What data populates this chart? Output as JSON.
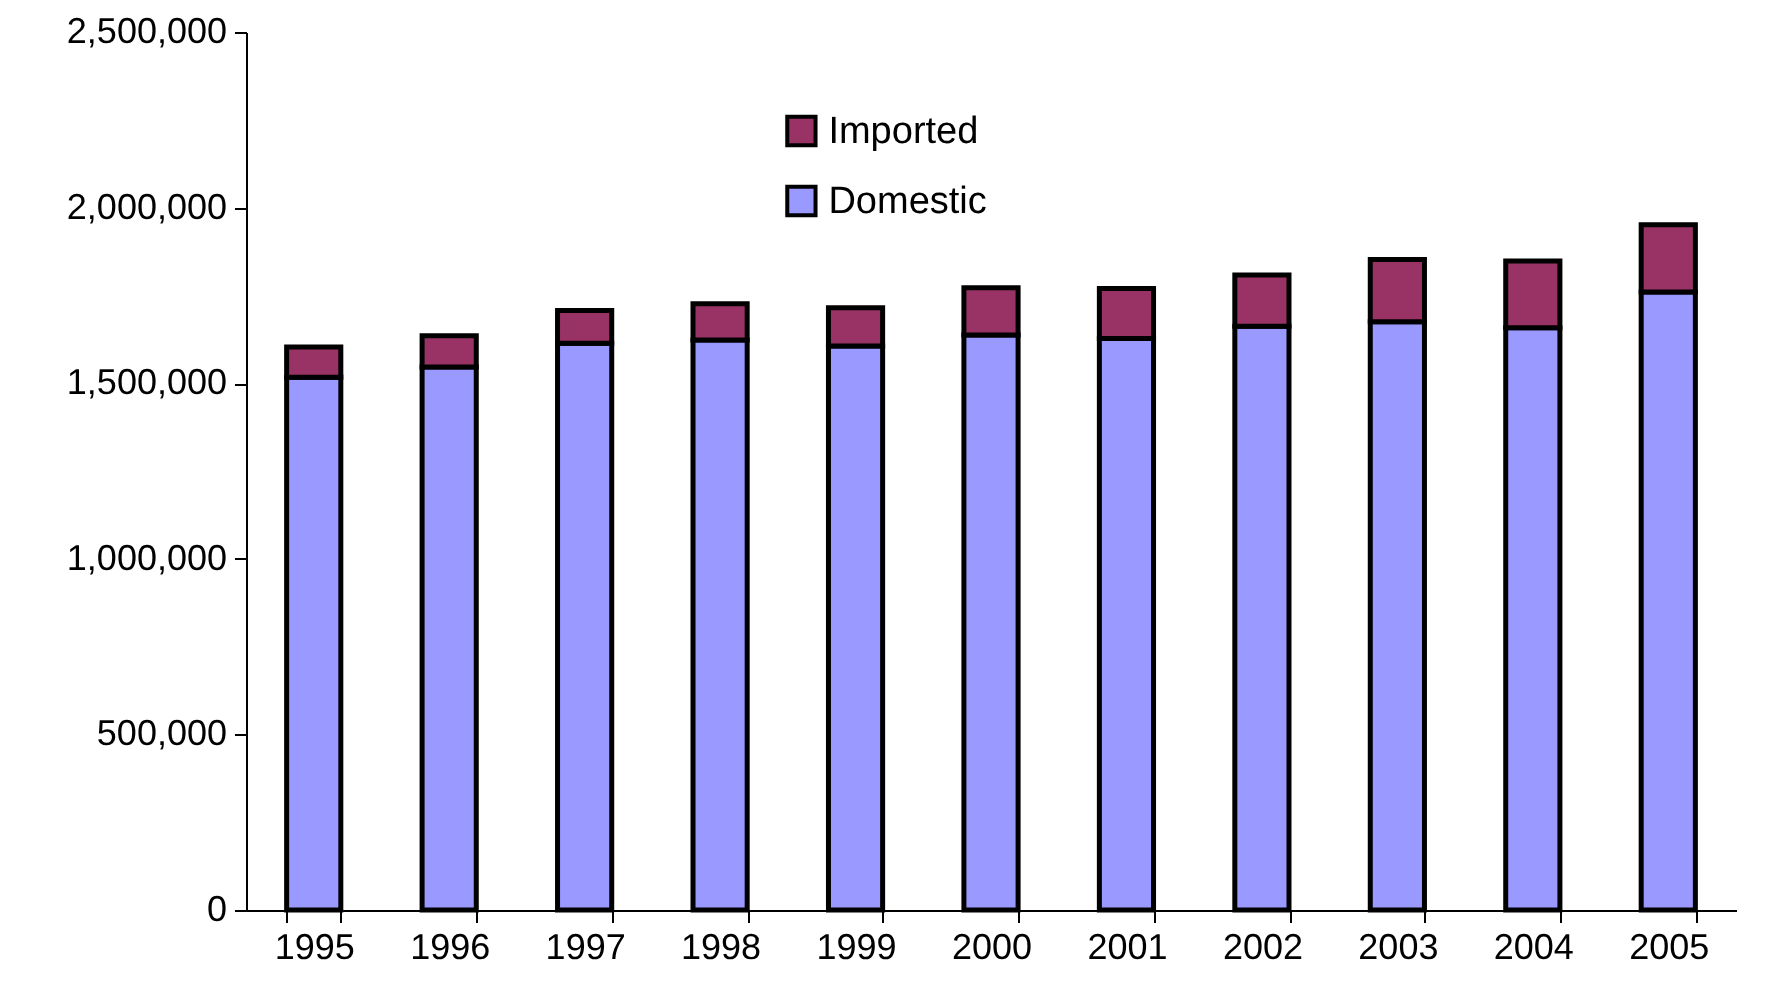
{
  "chart_data": {
    "type": "bar",
    "stacked": true,
    "categories": [
      "1995",
      "1996",
      "1997",
      "1998",
      "1999",
      "2000",
      "2001",
      "2002",
      "2003",
      "2004",
      "2005"
    ],
    "series": [
      {
        "name": "Domestic",
        "color": "#9999ff",
        "values": [
          1517000,
          1546000,
          1614000,
          1623000,
          1606000,
          1637000,
          1627000,
          1662000,
          1675000,
          1658000,
          1760000
        ]
      },
      {
        "name": "Imported",
        "color": "#993366",
        "values": [
          86000,
          89000,
          93000,
          103000,
          109000,
          135000,
          143000,
          146000,
          177000,
          190000,
          191000
        ]
      }
    ],
    "ylim": [
      0,
      2500000
    ],
    "yticks": [
      {
        "value": 0,
        "label": "0"
      },
      {
        "value": 500000,
        "label": "500,000"
      },
      {
        "value": 1000000,
        "label": "1,000,000"
      },
      {
        "value": 1500000,
        "label": "1,500,000"
      },
      {
        "value": 2000000,
        "label": "2,000,000"
      },
      {
        "value": 2500000,
        "label": "2,500,000"
      }
    ],
    "legend": "top",
    "grid": false
  }
}
